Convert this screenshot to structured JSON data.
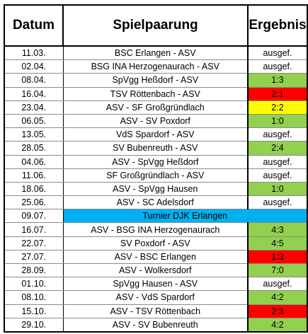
{
  "header": {
    "date": "Datum",
    "match": "Spielpaarung",
    "result": "Ergebnis"
  },
  "colors": {
    "win": "#92d050",
    "loss": "#ff0000",
    "draw": "#ffff00",
    "event": "#00b0f0",
    "none": "#ffffff"
  },
  "rows": [
    {
      "date": "11.03.",
      "match": "BSC Erlangen - ASV",
      "result": "ausgef.",
      "status": "none"
    },
    {
      "date": "02.04.",
      "match": "BSG INA Herzogenaurach - ASV",
      "result": "ausgef.",
      "status": "none"
    },
    {
      "date": "08.04.",
      "match": "SpVgg Heßdorf - ASV",
      "result": "1:3",
      "status": "win"
    },
    {
      "date": "16.04.",
      "match": "TSV Röttenbach - ASV",
      "result": "2:1",
      "status": "loss"
    },
    {
      "date": "23.04.",
      "match": "ASV - SF Großgründlach",
      "result": "2:2",
      "status": "draw"
    },
    {
      "date": "06.05.",
      "match": "ASV - SV Poxdorf",
      "result": "1:0",
      "status": "win"
    },
    {
      "date": "13.05.",
      "match": "VdS Spardorf - ASV",
      "result": "ausgef.",
      "status": "none"
    },
    {
      "date": "28.05.",
      "match": "SV Bubenreuth - ASV",
      "result": "2:4",
      "status": "win"
    },
    {
      "date": "04.06.",
      "match": "ASV - SpVgg Heßdorf",
      "result": "ausgef.",
      "status": "none"
    },
    {
      "date": "11.06.",
      "match": "SF Großgründlach - ASV",
      "result": "ausgef.",
      "status": "none"
    },
    {
      "date": "18.06.",
      "match": "ASV - SpVgg Hausen",
      "result": "1:0",
      "status": "win"
    },
    {
      "date": "25.06.",
      "match": "ASV - SC Adelsdorf",
      "result": "ausgef.",
      "status": "none"
    },
    {
      "date": "09.07.",
      "match": "Turnier DJK Erlangen",
      "result": "",
      "status": "event"
    },
    {
      "date": "16.07.",
      "match": "ASV - BSG INA Herzogenaurach",
      "result": "4:3",
      "status": "win"
    },
    {
      "date": "22.07.",
      "match": "SV Poxdorf - ASV",
      "result": "4:5",
      "status": "win"
    },
    {
      "date": "27.07.",
      "match": "ASV - BSC Erlangen",
      "result": "1:3",
      "status": "loss"
    },
    {
      "date": "28.09.",
      "match": "ASV - Wolkersdorf",
      "result": "7:0",
      "status": "win"
    },
    {
      "date": "01.10.",
      "match": "SpVgg Hausen - ASV",
      "result": "ausgef.",
      "status": "none"
    },
    {
      "date": "08.10.",
      "match": "ASV - VdS Spardorf",
      "result": "4:2",
      "status": "win"
    },
    {
      "date": "15.10.",
      "match": "ASV - TSV Röttenbach",
      "result": "2:3",
      "status": "loss"
    },
    {
      "date": "29.10.",
      "match": "ASV - SV Bubenreuth",
      "result": "4:2",
      "status": "win"
    }
  ]
}
